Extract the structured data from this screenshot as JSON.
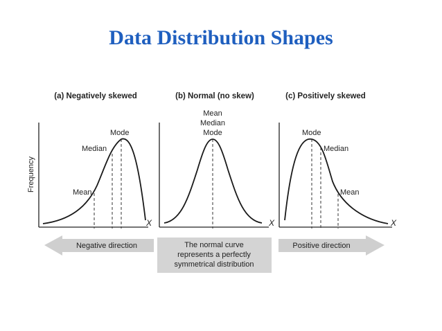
{
  "title": "Data Distribution Shapes",
  "y_axis_label": "Frequency",
  "x_axis_label": "X",
  "panels": [
    {
      "id": "negative",
      "title": "(a) Negatively skewed",
      "labels": [
        "Mode",
        "Median",
        "Mean"
      ]
    },
    {
      "id": "normal",
      "title": "(b) Normal (no skew)",
      "labels": [
        "Mean",
        "Median",
        "Mode"
      ]
    },
    {
      "id": "positive",
      "title": "(c) Positively skewed",
      "labels": [
        "Mode",
        "Median",
        "Mean"
      ]
    }
  ],
  "bottom": {
    "left_arrow": "Negative direction",
    "center_box": [
      "The normal curve",
      "represents a perfectly",
      "symmetrical distribution"
    ],
    "right_arrow": "Positive direction"
  },
  "colors": {
    "title": "#1f5fbf",
    "curve": "#1a1a1a",
    "arrow_fill": "#cfcfcf",
    "box_fill": "#d4d4d4"
  }
}
